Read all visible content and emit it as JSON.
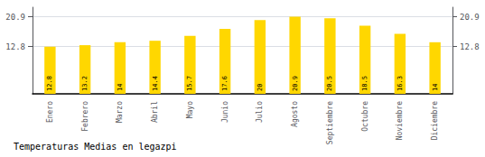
{
  "chart_data": {
    "type": "bar",
    "title": "Temperaturas Medias en legazpi",
    "categories": [
      "Enero",
      "Febrero",
      "Marzo",
      "Abril",
      "Mayo",
      "Junio",
      "Julio",
      "Agosto",
      "Septiembre",
      "Octubre",
      "Noviembre",
      "Diciembre"
    ],
    "values": [
      12.8,
      13.2,
      14.0,
      14.4,
      15.7,
      17.6,
      20.0,
      20.9,
      20.5,
      18.5,
      16.3,
      14.0
    ],
    "color": "#FFD700",
    "ylim": [
      0,
      23.5
    ],
    "yticks": [
      12.8,
      20.9
    ],
    "grid": true,
    "data_labels": true
  }
}
